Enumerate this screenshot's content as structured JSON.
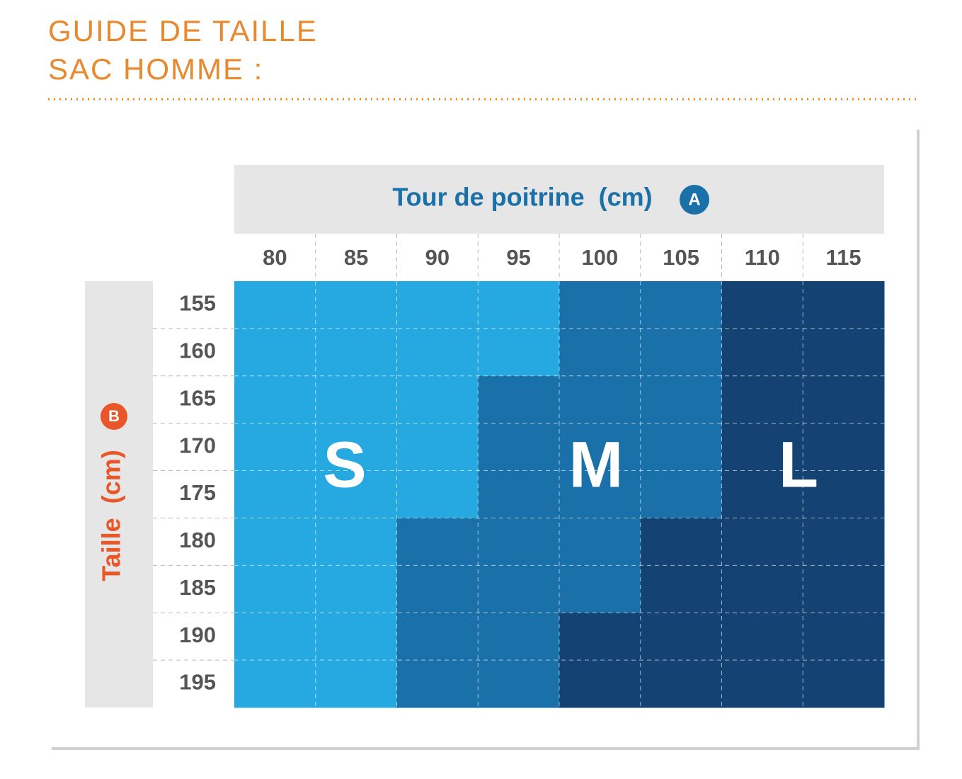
{
  "header": {
    "title_lines": [
      "GUIDE DE TAILLE",
      "SAC HOMME :"
    ]
  },
  "table": {
    "column_header": {
      "label": "Tour de poitrine  (cm)",
      "badge": "A"
    },
    "row_header": {
      "label": "Taille  (cm)",
      "badge": "B"
    },
    "columns": [
      80,
      85,
      90,
      95,
      100,
      105,
      110,
      115
    ],
    "rows": [
      155,
      160,
      165,
      170,
      175,
      180,
      185,
      190,
      195
    ],
    "sizes": [
      "S",
      "M",
      "L"
    ],
    "size_colors": {
      "S": "#25a9e0",
      "M": "#1a70a8",
      "L": "#134273"
    },
    "cells": [
      [
        "S",
        "S",
        "S",
        "S",
        "M",
        "M",
        "L",
        "L"
      ],
      [
        "S",
        "S",
        "S",
        "S",
        "M",
        "M",
        "L",
        "L"
      ],
      [
        "S",
        "S",
        "S",
        "M",
        "M",
        "M",
        "L",
        "L"
      ],
      [
        "S",
        "S",
        "S",
        "M",
        "M",
        "M",
        "L",
        "L"
      ],
      [
        "S",
        "S",
        "S",
        "M",
        "M",
        "M",
        "L",
        "L"
      ],
      [
        "S",
        "S",
        "M",
        "M",
        "M",
        "L",
        "L",
        "L"
      ],
      [
        "S",
        "S",
        "M",
        "M",
        "M",
        "L",
        "L",
        "L"
      ],
      [
        "S",
        "S",
        "M",
        "M",
        "L",
        "L",
        "L",
        "L"
      ],
      [
        "S",
        "S",
        "M",
        "M",
        "L",
        "L",
        "L",
        "L"
      ]
    ]
  }
}
